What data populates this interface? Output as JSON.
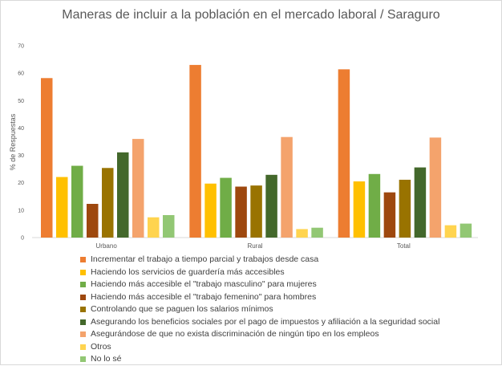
{
  "chart_data": {
    "type": "bar",
    "title": "Maneras de incluir a la población en el mercado laboral / Saraguro",
    "ylabel": "% de Respuestas",
    "xlabel": "",
    "ylim": [
      0,
      70
    ],
    "yticks": [
      0,
      10,
      20,
      30,
      40,
      50,
      60,
      70
    ],
    "categories": [
      "Urbano",
      "Rural",
      "Total"
    ],
    "grid": false,
    "legend_position": "bottom",
    "series": [
      {
        "name": "Incrementar el trabajo a tiempo parcial y trabajos desde casa",
        "color": "#ED7D31",
        "values": [
          58.2,
          63,
          61.4
        ]
      },
      {
        "name": "Haciendo los servicios de guardería más accesibles",
        "color": "#FFC000",
        "values": [
          22.1,
          19.7,
          20.5
        ]
      },
      {
        "name": "Haciendo más accesible el \"trabajo masculino\" para mujeres",
        "color": "#70AD47",
        "values": [
          26.2,
          21.8,
          23.2
        ]
      },
      {
        "name": "Haciendo más accesible el \"trabajo femenino\" para hombres",
        "color": "#9E480E",
        "values": [
          12.3,
          18.6,
          16.5
        ]
      },
      {
        "name": "Controlando que se paguen los salarios mínimos",
        "color": "#997300",
        "values": [
          25.4,
          19,
          21.1
        ]
      },
      {
        "name": "Asegurando los beneficios sociales por el pago de impuestos y afiliación a la seguridad social",
        "color": "#43682B",
        "values": [
          31.1,
          22.9,
          25.6
        ]
      },
      {
        "name": "Asegurándose de que no exista discriminación de ningún tipo en los empleos",
        "color": "#F4A36C",
        "values": [
          36,
          36.7,
          36.5
        ]
      },
      {
        "name": "Otros",
        "color": "#FFD44F",
        "values": [
          7.4,
          3.1,
          4.5
        ]
      },
      {
        "name": "No lo sé",
        "color": "#92C774",
        "values": [
          8.2,
          3.6,
          5.1
        ]
      }
    ]
  }
}
